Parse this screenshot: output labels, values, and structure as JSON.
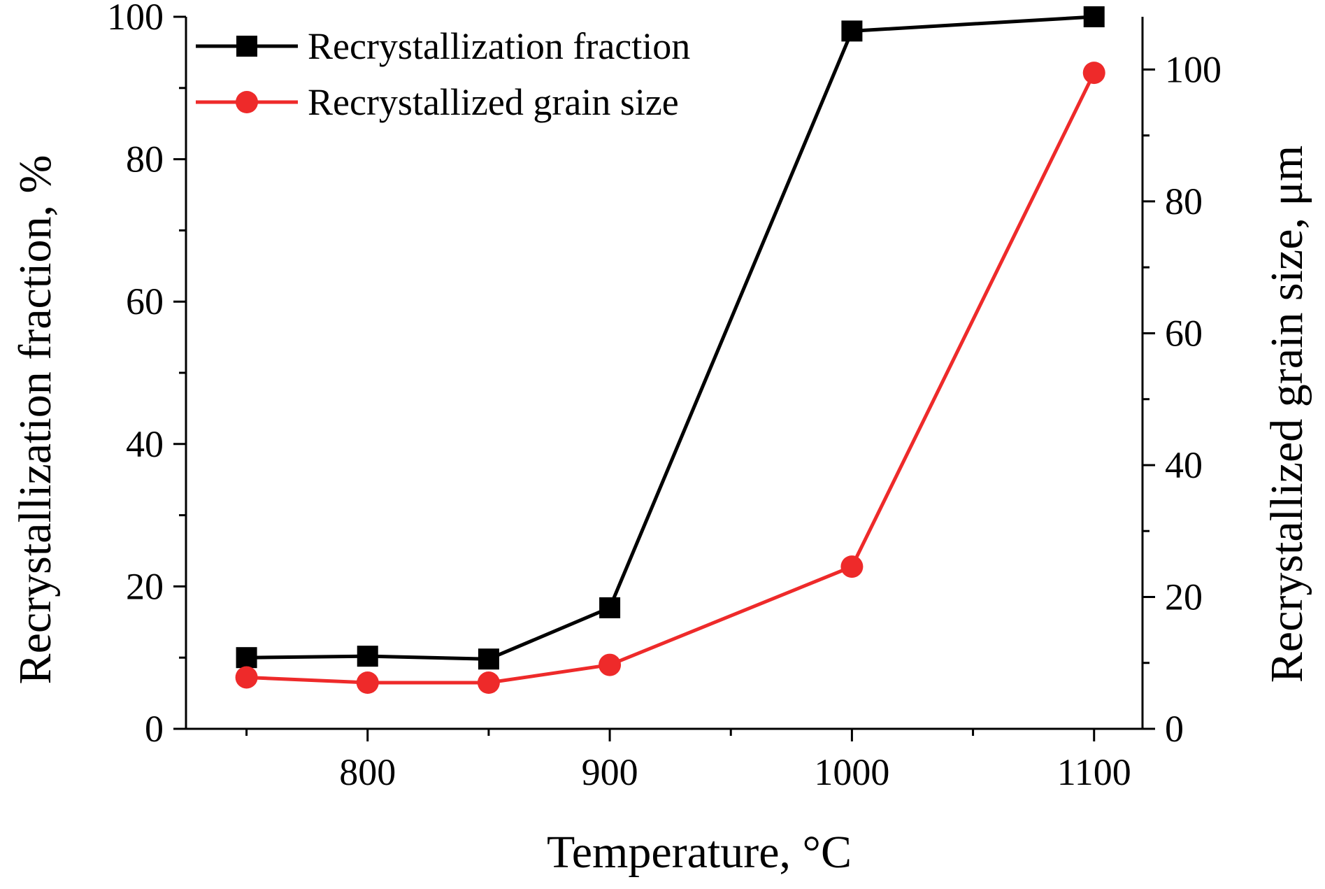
{
  "chart_data": {
    "type": "line",
    "title": "",
    "xlabel": "Temperature, °C",
    "ylabel_left": "Recrystallization fraction, %",
    "ylabel_right": "Recrystallized grain size, μm",
    "xlim": [
      725,
      1120
    ],
    "ylim_left": [
      0,
      100
    ],
    "ylim_right": [
      0,
      108
    ],
    "x_ticks": [
      800,
      900,
      1000,
      1100
    ],
    "x_minor_ticks": [
      750,
      850,
      950,
      1050
    ],
    "y_left_ticks": [
      0,
      20,
      40,
      60,
      80,
      100
    ],
    "y_left_minor_ticks": [
      10,
      30,
      50,
      70,
      90
    ],
    "y_right_ticks": [
      0,
      20,
      40,
      60,
      80,
      100
    ],
    "y_right_minor_ticks": [
      10,
      30,
      50,
      70,
      90
    ],
    "grid": false,
    "legend_position": "top-left",
    "series": [
      {
        "name": "Recrystallization fraction",
        "axis": "left",
        "color": "#000000",
        "marker": "square",
        "x": [
          750,
          800,
          850,
          900,
          1000,
          1100
        ],
        "values": [
          10,
          10.2,
          9.8,
          17,
          98,
          100
        ]
      },
      {
        "name": "Recrystallized grain size",
        "axis": "right",
        "color": "#ee2a2a",
        "marker": "circle",
        "x": [
          750,
          800,
          850,
          900,
          1000,
          1100
        ],
        "values": [
          7.8,
          7.0,
          7.0,
          9.7,
          24.6,
          99.5
        ]
      }
    ]
  }
}
